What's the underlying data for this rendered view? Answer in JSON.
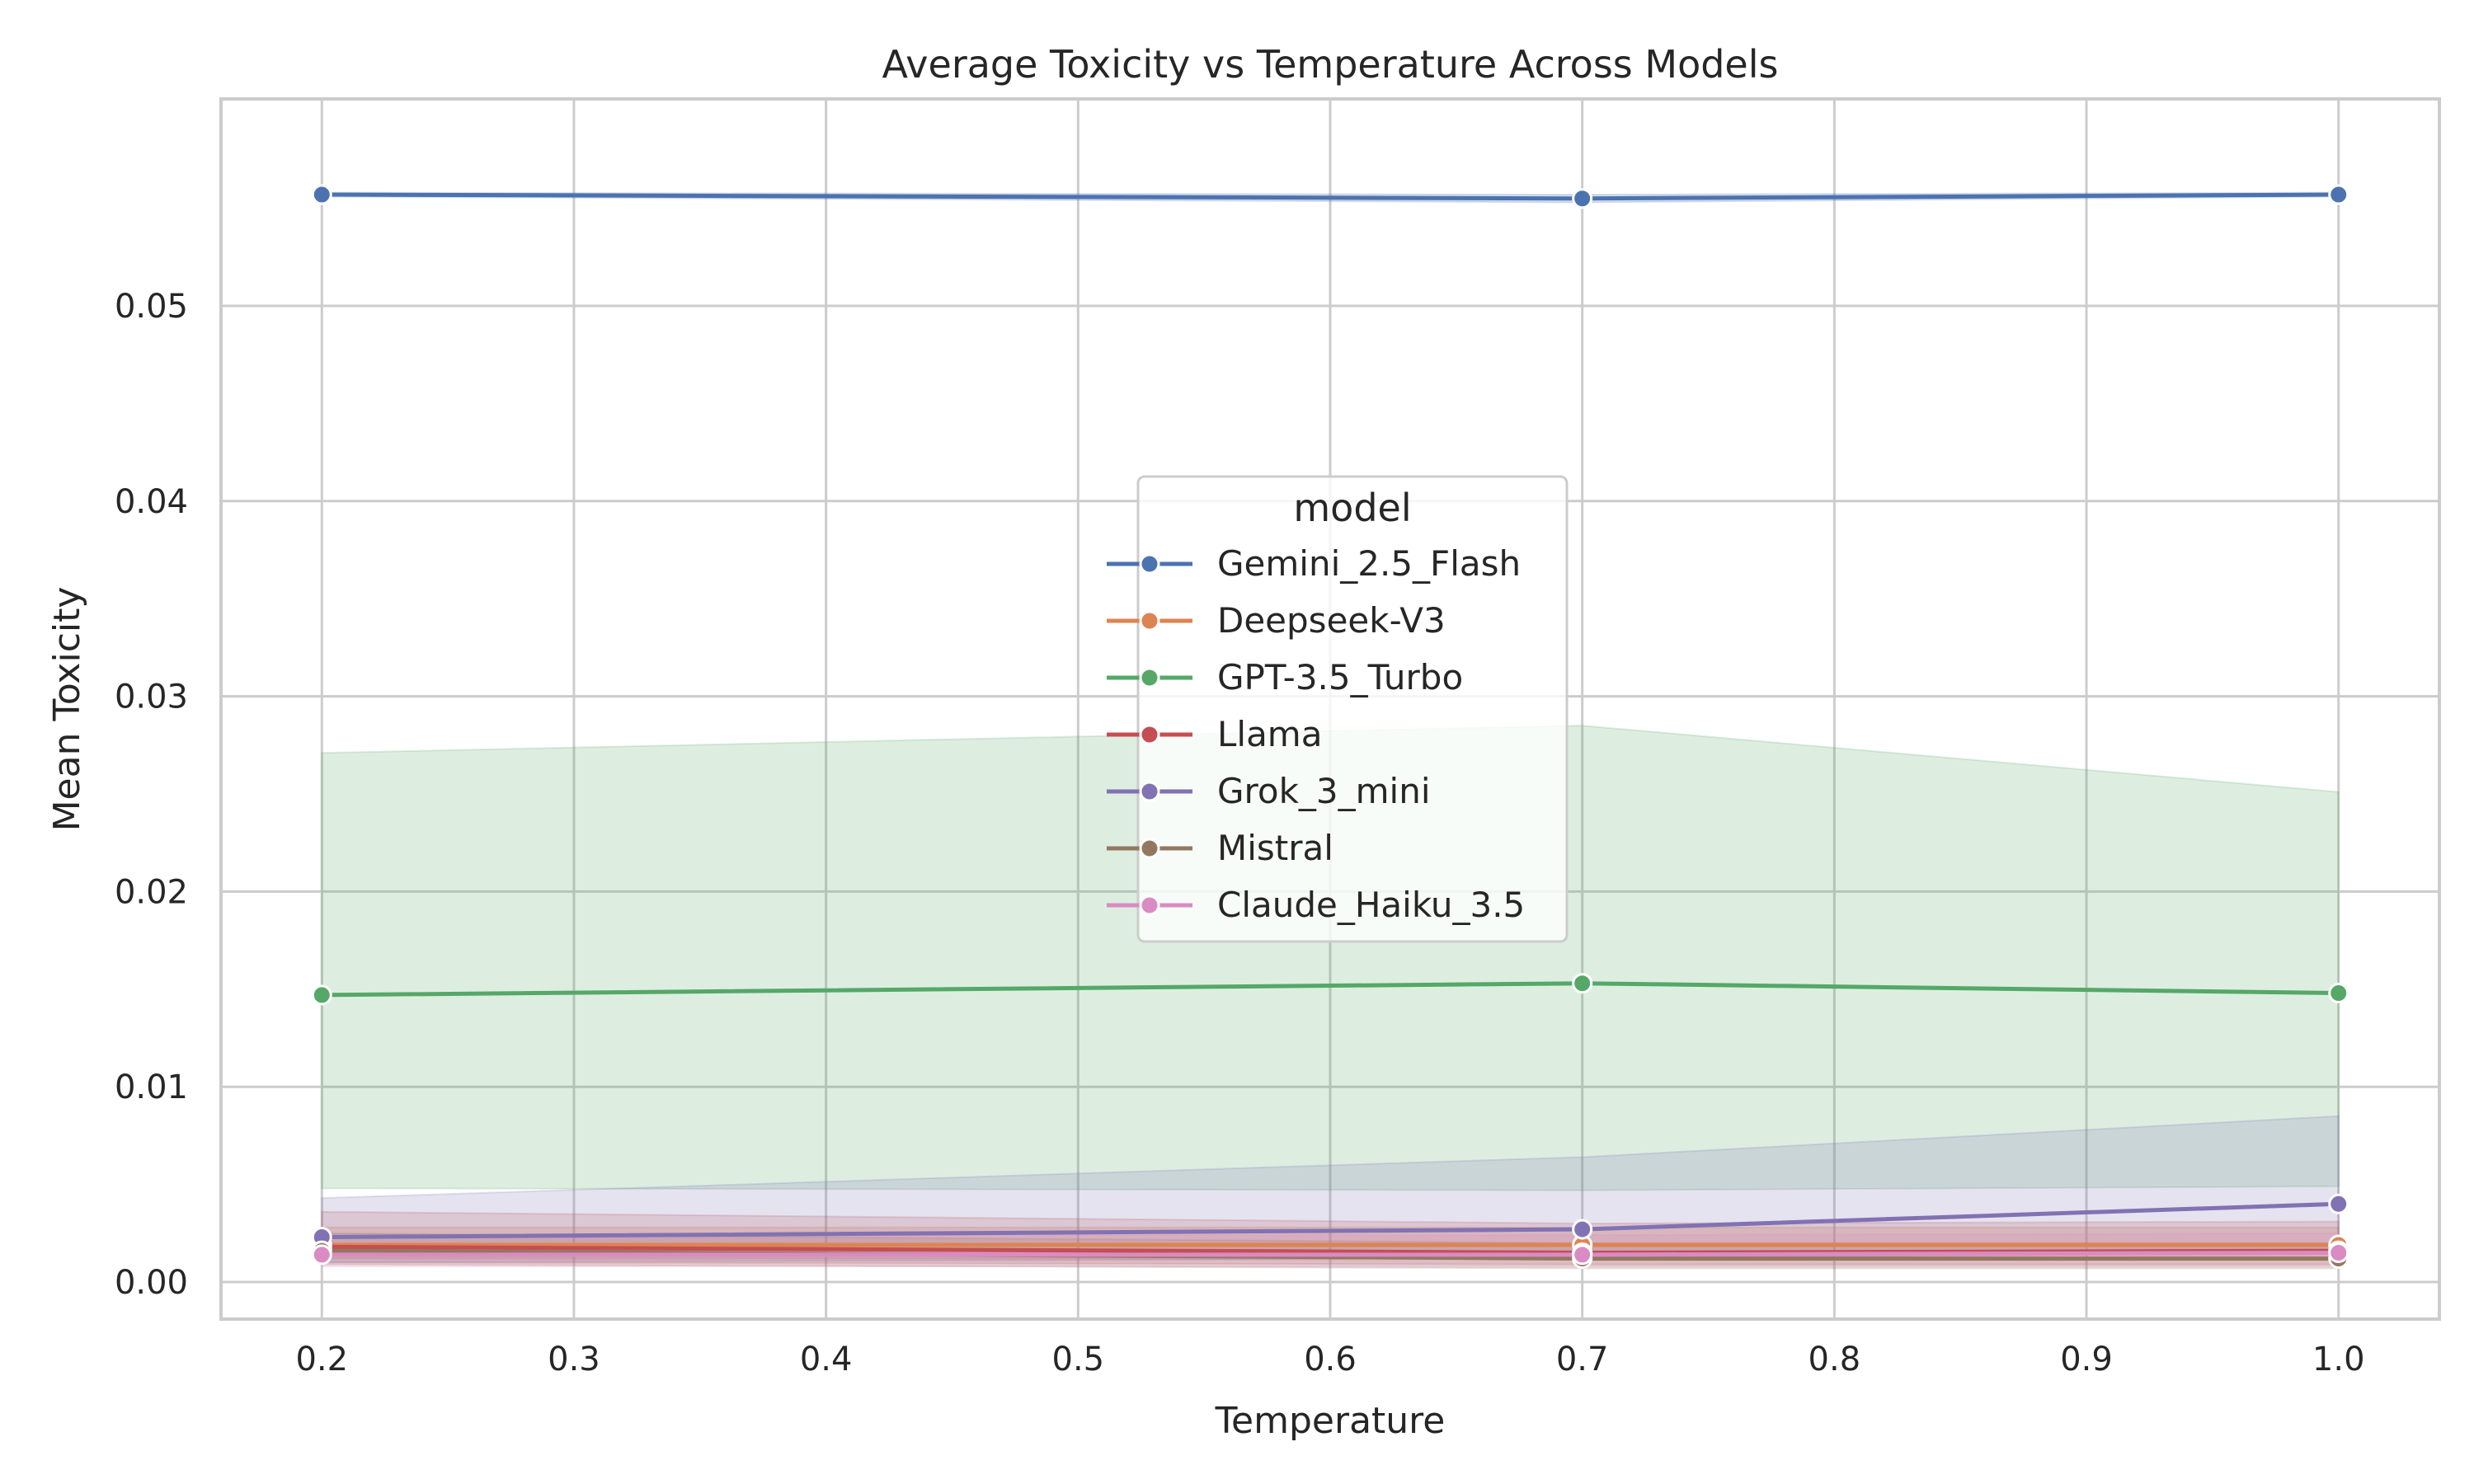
{
  "chart_data": {
    "type": "line",
    "title": "Average Toxicity vs Temperature Across Models",
    "xlabel": "Temperature",
    "ylabel": "Mean Toxicity",
    "x": [
      0.2,
      0.7,
      1.0
    ],
    "xlim": [
      0.16,
      1.04
    ],
    "ylim": [
      -0.0019,
      0.0606
    ],
    "xticks": [
      "0.2",
      "0.3",
      "0.4",
      "0.5",
      "0.6",
      "0.7",
      "0.8",
      "0.9",
      "1.0"
    ],
    "yticks": [
      "0.00",
      "0.01",
      "0.02",
      "0.03",
      "0.04",
      "0.05"
    ],
    "grid": true,
    "legend": {
      "title": "model",
      "placement": "center"
    },
    "series": [
      {
        "name": "Gemini_2.5_Flash",
        "color": "#4c72b0",
        "values": [
          0.0557,
          0.0555,
          0.0557
        ],
        "ci_lower": [
          0.0556,
          0.0553,
          0.0556
        ],
        "ci_upper": [
          0.0558,
          0.0557,
          0.0558
        ]
      },
      {
        "name": "Deepseek-V3",
        "color": "#dd8452",
        "values": [
          0.0019,
          0.0019,
          0.0019
        ],
        "ci_lower": [
          0.0012,
          0.0012,
          0.0012
        ],
        "ci_upper": [
          0.0028,
          0.0028,
          0.0028
        ]
      },
      {
        "name": "GPT-3.5_Turbo",
        "color": "#55a868",
        "values": [
          0.0147,
          0.0153,
          0.0148
        ],
        "ci_lower": [
          0.0048,
          0.0047,
          0.0049
        ],
        "ci_upper": [
          0.0271,
          0.0285,
          0.0251
        ]
      },
      {
        "name": "Llama",
        "color": "#c44e52",
        "values": [
          0.0018,
          0.0015,
          0.0016
        ],
        "ci_lower": [
          0.001,
          0.0009,
          0.0009
        ],
        "ci_upper": [
          0.0036,
          0.003,
          0.0031
        ]
      },
      {
        "name": "Grok_3_mini",
        "color": "#8172b3",
        "values": [
          0.0023,
          0.0027,
          0.004
        ],
        "ci_lower": [
          0.001,
          0.0012,
          0.0015
        ],
        "ci_upper": [
          0.0043,
          0.0064,
          0.0085
        ]
      },
      {
        "name": "Mistral",
        "color": "#937860",
        "values": [
          0.0016,
          0.0012,
          0.0012
        ],
        "ci_lower": [
          0.0009,
          0.0007,
          0.0007
        ],
        "ci_upper": [
          0.0025,
          0.002,
          0.002
        ]
      },
      {
        "name": "Claude_Haiku_3.5",
        "color": "#da8bc3",
        "values": [
          0.0014,
          0.0014,
          0.0015
        ],
        "ci_lower": [
          0.0008,
          0.0008,
          0.0008
        ],
        "ci_upper": [
          0.0024,
          0.0024,
          0.0025
        ]
      }
    ]
  }
}
